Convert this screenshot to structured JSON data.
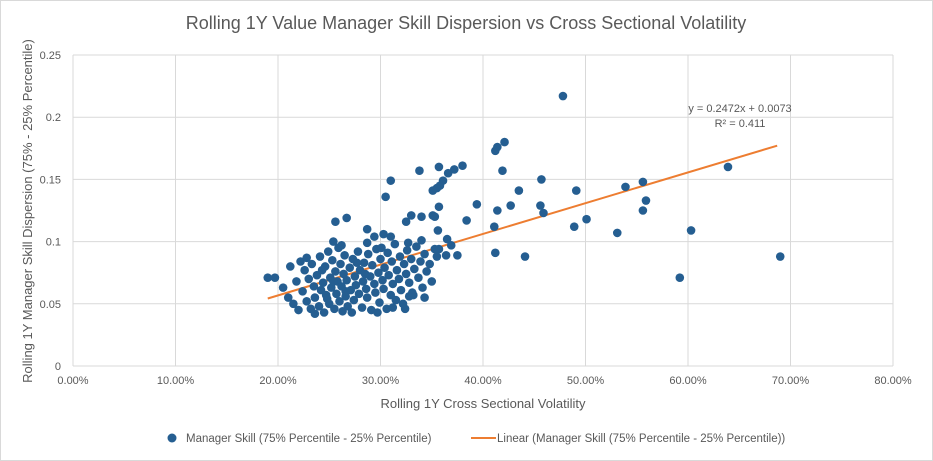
{
  "chart_data": {
    "type": "scatter",
    "title": "Rolling 1Y Value Manager Skill Dispersion vs Cross Sectional Volatility",
    "xlabel": "Rolling 1Y Cross Sectional Volatility",
    "ylabel": "Rolling 1Y Manager Skill Dispersion (75% - 25% Percentile)",
    "xlim": [
      0,
      0.8
    ],
    "ylim": [
      0,
      0.25
    ],
    "x_ticks": [
      "0.00%",
      "10.00%",
      "20.00%",
      "30.00%",
      "40.00%",
      "50.00%",
      "60.00%",
      "70.00%",
      "80.00%"
    ],
    "y_ticks": [
      "0",
      "0.05",
      "0.1",
      "0.15",
      "0.2",
      "0.25"
    ],
    "grid": true,
    "legend_position": "bottom",
    "colors": {
      "points": "#255E91",
      "trendline": "#ED7D31"
    },
    "series": [
      {
        "name": "Manager Skill (75% Percentile - 25% Percentile)",
        "points": [
          [
            0.19,
            0.071
          ],
          [
            0.197,
            0.071
          ],
          [
            0.478,
            0.217
          ],
          [
            0.639,
            0.16
          ],
          [
            0.69,
            0.088
          ],
          [
            0.592,
            0.071
          ],
          [
            0.603,
            0.109
          ],
          [
            0.531,
            0.107
          ],
          [
            0.556,
            0.148
          ],
          [
            0.539,
            0.144
          ],
          [
            0.559,
            0.133
          ],
          [
            0.556,
            0.125
          ],
          [
            0.501,
            0.118
          ],
          [
            0.489,
            0.112
          ],
          [
            0.491,
            0.141
          ],
          [
            0.457,
            0.15
          ],
          [
            0.456,
            0.129
          ],
          [
            0.459,
            0.123
          ],
          [
            0.441,
            0.088
          ],
          [
            0.435,
            0.141
          ],
          [
            0.427,
            0.129
          ],
          [
            0.421,
            0.18
          ],
          [
            0.414,
            0.176
          ],
          [
            0.412,
            0.173
          ],
          [
            0.419,
            0.157
          ],
          [
            0.414,
            0.125
          ],
          [
            0.411,
            0.112
          ],
          [
            0.412,
            0.091
          ],
          [
            0.394,
            0.13
          ],
          [
            0.384,
            0.117
          ],
          [
            0.38,
            0.161
          ],
          [
            0.372,
            0.158
          ],
          [
            0.366,
            0.155
          ],
          [
            0.357,
            0.16
          ],
          [
            0.361,
            0.149
          ],
          [
            0.358,
            0.145
          ],
          [
            0.355,
            0.143
          ],
          [
            0.351,
            0.141
          ],
          [
            0.357,
            0.128
          ],
          [
            0.351,
            0.121
          ],
          [
            0.353,
            0.12
          ],
          [
            0.356,
            0.109
          ],
          [
            0.365,
            0.102
          ],
          [
            0.369,
            0.097
          ],
          [
            0.375,
            0.089
          ],
          [
            0.364,
            0.089
          ],
          [
            0.357,
            0.094
          ],
          [
            0.355,
            0.088
          ],
          [
            0.338,
            0.157
          ],
          [
            0.34,
            0.12
          ],
          [
            0.33,
            0.121
          ],
          [
            0.325,
            0.116
          ],
          [
            0.31,
            0.149
          ],
          [
            0.305,
            0.136
          ],
          [
            0.287,
            0.11
          ],
          [
            0.294,
            0.104
          ],
          [
            0.303,
            0.106
          ],
          [
            0.31,
            0.104
          ],
          [
            0.267,
            0.119
          ],
          [
            0.256,
            0.116
          ],
          [
            0.34,
            0.101
          ],
          [
            0.327,
            0.099
          ],
          [
            0.287,
            0.099
          ],
          [
            0.254,
            0.1
          ],
          [
            0.343,
            0.055
          ],
          [
            0.332,
            0.057
          ],
          [
            0.328,
            0.056
          ],
          [
            0.205,
            0.063
          ],
          [
            0.21,
            0.055
          ],
          [
            0.212,
            0.08
          ],
          [
            0.215,
            0.05
          ],
          [
            0.218,
            0.068
          ],
          [
            0.22,
            0.045
          ],
          [
            0.222,
            0.084
          ],
          [
            0.224,
            0.06
          ],
          [
            0.226,
            0.077
          ],
          [
            0.228,
            0.052
          ],
          [
            0.23,
            0.07
          ],
          [
            0.232,
            0.046
          ],
          [
            0.233,
            0.082
          ],
          [
            0.235,
            0.064
          ],
          [
            0.236,
            0.055
          ],
          [
            0.238,
            0.073
          ],
          [
            0.24,
            0.048
          ],
          [
            0.241,
            0.088
          ],
          [
            0.242,
            0.061
          ],
          [
            0.244,
            0.067
          ],
          [
            0.245,
            0.043
          ],
          [
            0.246,
            0.08
          ],
          [
            0.247,
            0.057
          ],
          [
            0.249,
            0.092
          ],
          [
            0.25,
            0.05
          ],
          [
            0.251,
            0.071
          ],
          [
            0.252,
            0.063
          ],
          [
            0.253,
            0.085
          ],
          [
            0.255,
            0.046
          ],
          [
            0.256,
            0.076
          ],
          [
            0.257,
            0.058
          ],
          [
            0.258,
            0.068
          ],
          [
            0.259,
            0.095
          ],
          [
            0.26,
            0.052
          ],
          [
            0.261,
            0.082
          ],
          [
            0.262,
            0.064
          ],
          [
            0.263,
            0.044
          ],
          [
            0.264,
            0.074
          ],
          [
            0.265,
            0.089
          ],
          [
            0.266,
            0.056
          ],
          [
            0.267,
            0.069
          ],
          [
            0.268,
            0.048
          ],
          [
            0.27,
            0.079
          ],
          [
            0.271,
            0.061
          ],
          [
            0.273,
            0.086
          ],
          [
            0.274,
            0.053
          ],
          [
            0.275,
            0.072
          ],
          [
            0.276,
            0.065
          ],
          [
            0.278,
            0.092
          ],
          [
            0.279,
            0.058
          ],
          [
            0.28,
            0.077
          ],
          [
            0.282,
            0.047
          ],
          [
            0.283,
            0.068
          ],
          [
            0.284,
            0.083
          ],
          [
            0.286,
            0.062
          ],
          [
            0.287,
            0.055
          ],
          [
            0.288,
            0.09
          ],
          [
            0.29,
            0.072
          ],
          [
            0.291,
            0.045
          ],
          [
            0.292,
            0.081
          ],
          [
            0.294,
            0.066
          ],
          [
            0.295,
            0.059
          ],
          [
            0.296,
            0.094
          ],
          [
            0.298,
            0.075
          ],
          [
            0.299,
            0.051
          ],
          [
            0.3,
            0.086
          ],
          [
            0.302,
            0.069
          ],
          [
            0.303,
            0.062
          ],
          [
            0.304,
            0.079
          ],
          [
            0.306,
            0.046
          ],
          [
            0.307,
            0.091
          ],
          [
            0.308,
            0.073
          ],
          [
            0.31,
            0.057
          ],
          [
            0.311,
            0.084
          ],
          [
            0.312,
            0.066
          ],
          [
            0.314,
            0.098
          ],
          [
            0.315,
            0.053
          ],
          [
            0.316,
            0.077
          ],
          [
            0.318,
            0.07
          ],
          [
            0.319,
            0.088
          ],
          [
            0.32,
            0.061
          ],
          [
            0.322,
            0.05
          ],
          [
            0.323,
            0.082
          ],
          [
            0.325,
            0.074
          ],
          [
            0.326,
            0.093
          ],
          [
            0.328,
            0.067
          ],
          [
            0.33,
            0.086
          ],
          [
            0.331,
            0.059
          ],
          [
            0.333,
            0.078
          ],
          [
            0.335,
            0.096
          ],
          [
            0.337,
            0.071
          ],
          [
            0.339,
            0.084
          ],
          [
            0.341,
            0.063
          ],
          [
            0.343,
            0.09
          ],
          [
            0.345,
            0.076
          ],
          [
            0.348,
            0.082
          ],
          [
            0.35,
            0.068
          ],
          [
            0.353,
            0.094
          ],
          [
            0.228,
            0.087
          ],
          [
            0.236,
            0.042
          ],
          [
            0.248,
            0.054
          ],
          [
            0.262,
            0.097
          ],
          [
            0.272,
            0.043
          ],
          [
            0.285,
            0.074
          ],
          [
            0.297,
            0.043
          ],
          [
            0.312,
            0.047
          ],
          [
            0.324,
            0.046
          ],
          [
            0.301,
            0.095
          ],
          [
            0.277,
            0.083
          ],
          [
            0.243,
            0.077
          ],
          [
            0.254,
            0.068
          ],
          [
            0.266,
            0.06
          ]
        ]
      },
      {
        "name": "Linear (Manager Skill (75% Percentile - 25% Percentile))",
        "type": "trendline",
        "slope": 0.2472,
        "intercept": 0.0073,
        "x_range": [
          0.19,
          0.687
        ]
      }
    ],
    "annotations": [
      "y = 0.2472x + 0.0073",
      "R² = 0.411"
    ]
  }
}
